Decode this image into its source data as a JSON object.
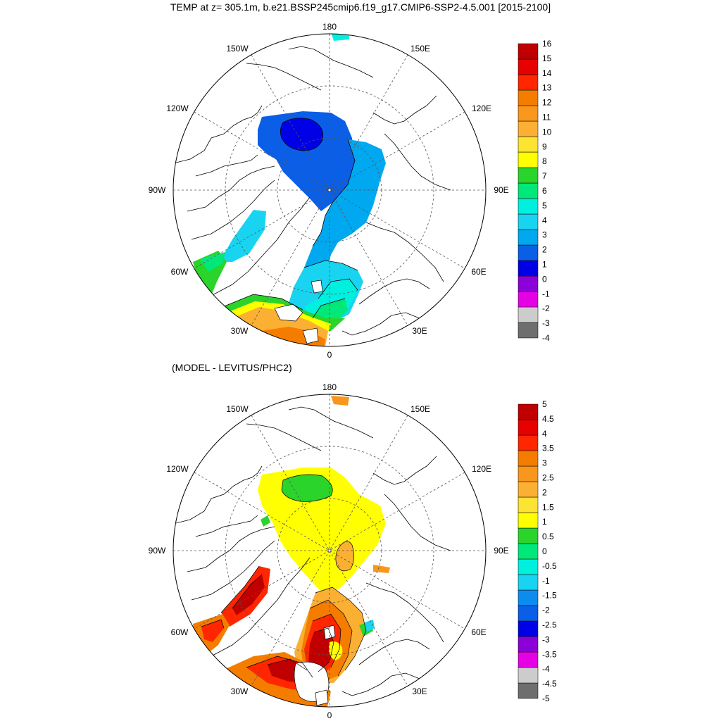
{
  "title": "TEMP at z= 305.1m, b.e21.BSSP245cmip6.f19_g17.CMIP6-SSP2-4.5.001 [2015-2100]",
  "subtitle": "(MODEL - LEVITUS/PHC2)",
  "lon_labels": [
    "180",
    "150E",
    "120E",
    "90E",
    "60E",
    "30E",
    "0",
    "30W",
    "60W",
    "90W",
    "120W",
    "150W"
  ],
  "colors": {
    "upper": [
      "#6e6e6e",
      "#cccccc",
      "#e600e6",
      "#8c00d9",
      "#0000e6",
      "#0a5fe6",
      "#00a8f0",
      "#18d4f0",
      "#00f0e0",
      "#00e87a",
      "#2ad42a",
      "#ffff00",
      "#fde332",
      "#fbb033",
      "#f9961c",
      "#f47d00",
      "#ff2600",
      "#e60000",
      "#c00000"
    ],
    "lower": [
      "#6e6e6e",
      "#cccccc",
      "#e600e6",
      "#8c00d9",
      "#0000e6",
      "#0a5fe6",
      "#0d8cf0",
      "#18d4f0",
      "#00f0e0",
      "#00e87a",
      "#2ad42a",
      "#ffff00",
      "#fde332",
      "#fbb033",
      "#f9961c",
      "#f47d00",
      "#ff2600",
      "#e60000",
      "#c00000"
    ]
  },
  "colorbar_upper": [
    "16",
    "15",
    "14",
    "13",
    "12",
    "11",
    "10",
    "9",
    "8",
    "7",
    "6",
    "5",
    "4",
    "3",
    "2",
    "1",
    "0",
    "-1",
    "-2",
    "-3",
    "-4"
  ],
  "colorbar_lower": [
    "5",
    "4.5",
    "4",
    "3.5",
    "3",
    "2.5",
    "2",
    "1.5",
    "1",
    "0.5",
    "0",
    "-0.5",
    "-1",
    "-1.5",
    "-2",
    "-2.5",
    "-3",
    "-3.5",
    "-4",
    "-4.5",
    "-5"
  ]
}
